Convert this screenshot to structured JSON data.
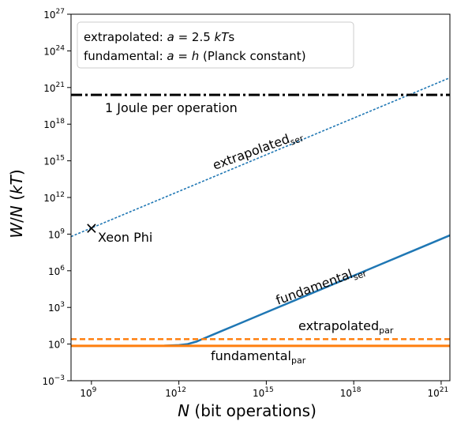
{
  "chart_data": {
    "type": "line",
    "xlabel": "N (bit operations)",
    "ylabel": "W/N (kT)",
    "x_scale": "log",
    "y_scale": "log",
    "xlim_log10": [
      8.3,
      21.3
    ],
    "ylim_log10": [
      -3,
      27
    ],
    "x_ticks": [
      {
        "exp": 9,
        "base": "10",
        "sup": "9"
      },
      {
        "exp": 12,
        "base": "10",
        "sup": "12"
      },
      {
        "exp": 15,
        "base": "10",
        "sup": "15"
      },
      {
        "exp": 18,
        "base": "10",
        "sup": "18"
      },
      {
        "exp": 21,
        "base": "10",
        "sup": "21"
      }
    ],
    "y_ticks": [
      {
        "exp": -3,
        "base": "10",
        "sup": "−3"
      },
      {
        "exp": 0,
        "base": "10",
        "sup": "0"
      },
      {
        "exp": 3,
        "base": "10",
        "sup": "3"
      },
      {
        "exp": 6,
        "base": "10",
        "sup": "6"
      },
      {
        "exp": 9,
        "base": "10",
        "sup": "9"
      },
      {
        "exp": 12,
        "base": "10",
        "sup": "12"
      },
      {
        "exp": 15,
        "base": "10",
        "sup": "15"
      },
      {
        "exp": 18,
        "base": "10",
        "sup": "18"
      },
      {
        "exp": 21,
        "base": "10",
        "sup": "21"
      },
      {
        "exp": 24,
        "base": "10",
        "sup": "24"
      },
      {
        "exp": 27,
        "base": "10",
        "sup": "27"
      }
    ],
    "series": [
      {
        "key": "extrapolated_ser",
        "label_main": "extrapolated",
        "label_sub": "ser",
        "color": "#1f77b4",
        "style": "dotted",
        "x_log10": [
          8.3,
          21.3
        ],
        "y_log10": [
          8.8,
          21.8
        ]
      },
      {
        "key": "fundamental_ser",
        "label_main": "fundamental",
        "label_sub": "ser",
        "color": "#1f77b4",
        "style": "solid",
        "x_log10": [
          8.3,
          10.0,
          11.0,
          11.5,
          12.0,
          12.3,
          12.6,
          13.0,
          13.5,
          14.0,
          15.0,
          16.0,
          17.0,
          18.0,
          19.0,
          20.0,
          21.3
        ],
        "y_log10": [
          -0.15,
          -0.15,
          -0.14,
          -0.13,
          -0.08,
          0.0,
          0.2,
          0.6,
          1.1,
          1.6,
          2.6,
          3.6,
          4.6,
          5.6,
          6.6,
          7.6,
          8.9
        ]
      },
      {
        "key": "extrapolated_par",
        "label_main": "extrapolated",
        "label_sub": "par",
        "color": "#ff7f0e",
        "style": "dashed",
        "x_log10": [
          8.3,
          21.3
        ],
        "y_log10": [
          0.4,
          0.4
        ]
      },
      {
        "key": "fundamental_par",
        "label_main": "fundamental",
        "label_sub": "par",
        "color": "#ff7f0e",
        "style": "solid",
        "x_log10": [
          8.3,
          21.3
        ],
        "y_log10": [
          -0.15,
          -0.15
        ]
      },
      {
        "key": "joule_line",
        "color": "#000000",
        "style": "dashdot",
        "x_log10": [
          8.3,
          21.3
        ],
        "y_log10": [
          20.4,
          20.4
        ]
      }
    ],
    "point": {
      "label": "Xeon Phi",
      "x_log10": 9.0,
      "y_log10": 9.5,
      "marker": "×"
    },
    "annotations": {
      "joule": "1 Joule per operation",
      "xeon": "Xeon Phi"
    },
    "legend": {
      "placement": "top-left",
      "line1_a": "extrapolated: ",
      "line1_var": "a",
      "line1_b": " = 2.5 ",
      "line1_kt": "kT",
      "line1_c": "s",
      "line2_a": "fundamental: ",
      "line2_var": "a",
      "line2_b": " = ",
      "line2_h": "h",
      "line2_c": " (Planck constant)"
    }
  }
}
